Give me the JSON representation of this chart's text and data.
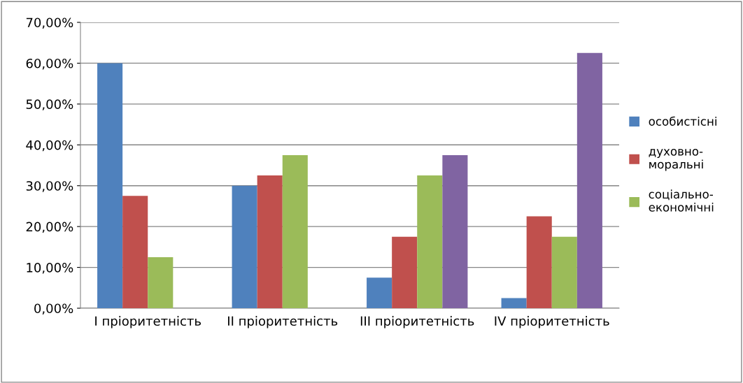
{
  "chart_data": {
    "type": "bar",
    "categories": [
      "I пріоритетність",
      "II пріоритетність",
      "III пріоритетність",
      "IV пріоритетність"
    ],
    "series": [
      {
        "name": "особистісні",
        "color": "#4f81bd",
        "values": [
          60,
          30,
          7.5,
          2.5
        ]
      },
      {
        "name": "духовно-моральні",
        "color": "#c0504d",
        "values": [
          27.5,
          32.5,
          17.5,
          22.5
        ]
      },
      {
        "name": "соціально-економічні",
        "color": "#9bbb59",
        "values": [
          12.5,
          37.5,
          32.5,
          17.5
        ]
      },
      {
        "color": "#8064a2",
        "values": [
          null,
          null,
          37.5,
          62.5
        ]
      }
    ],
    "ylim": [
      0,
      70
    ],
    "yticks": [
      {
        "value": 0,
        "label": "0,00%"
      },
      {
        "value": 10,
        "label": "10,00%"
      },
      {
        "value": 20,
        "label": "20,00%"
      },
      {
        "value": 30,
        "label": "30,00%"
      },
      {
        "value": 40,
        "label": "40,00%"
      },
      {
        "value": 50,
        "label": "50,00%"
      },
      {
        "value": 60,
        "label": "60,00%"
      },
      {
        "value": 70,
        "label": "70,00%"
      }
    ],
    "grid": "y",
    "legend": "right"
  }
}
